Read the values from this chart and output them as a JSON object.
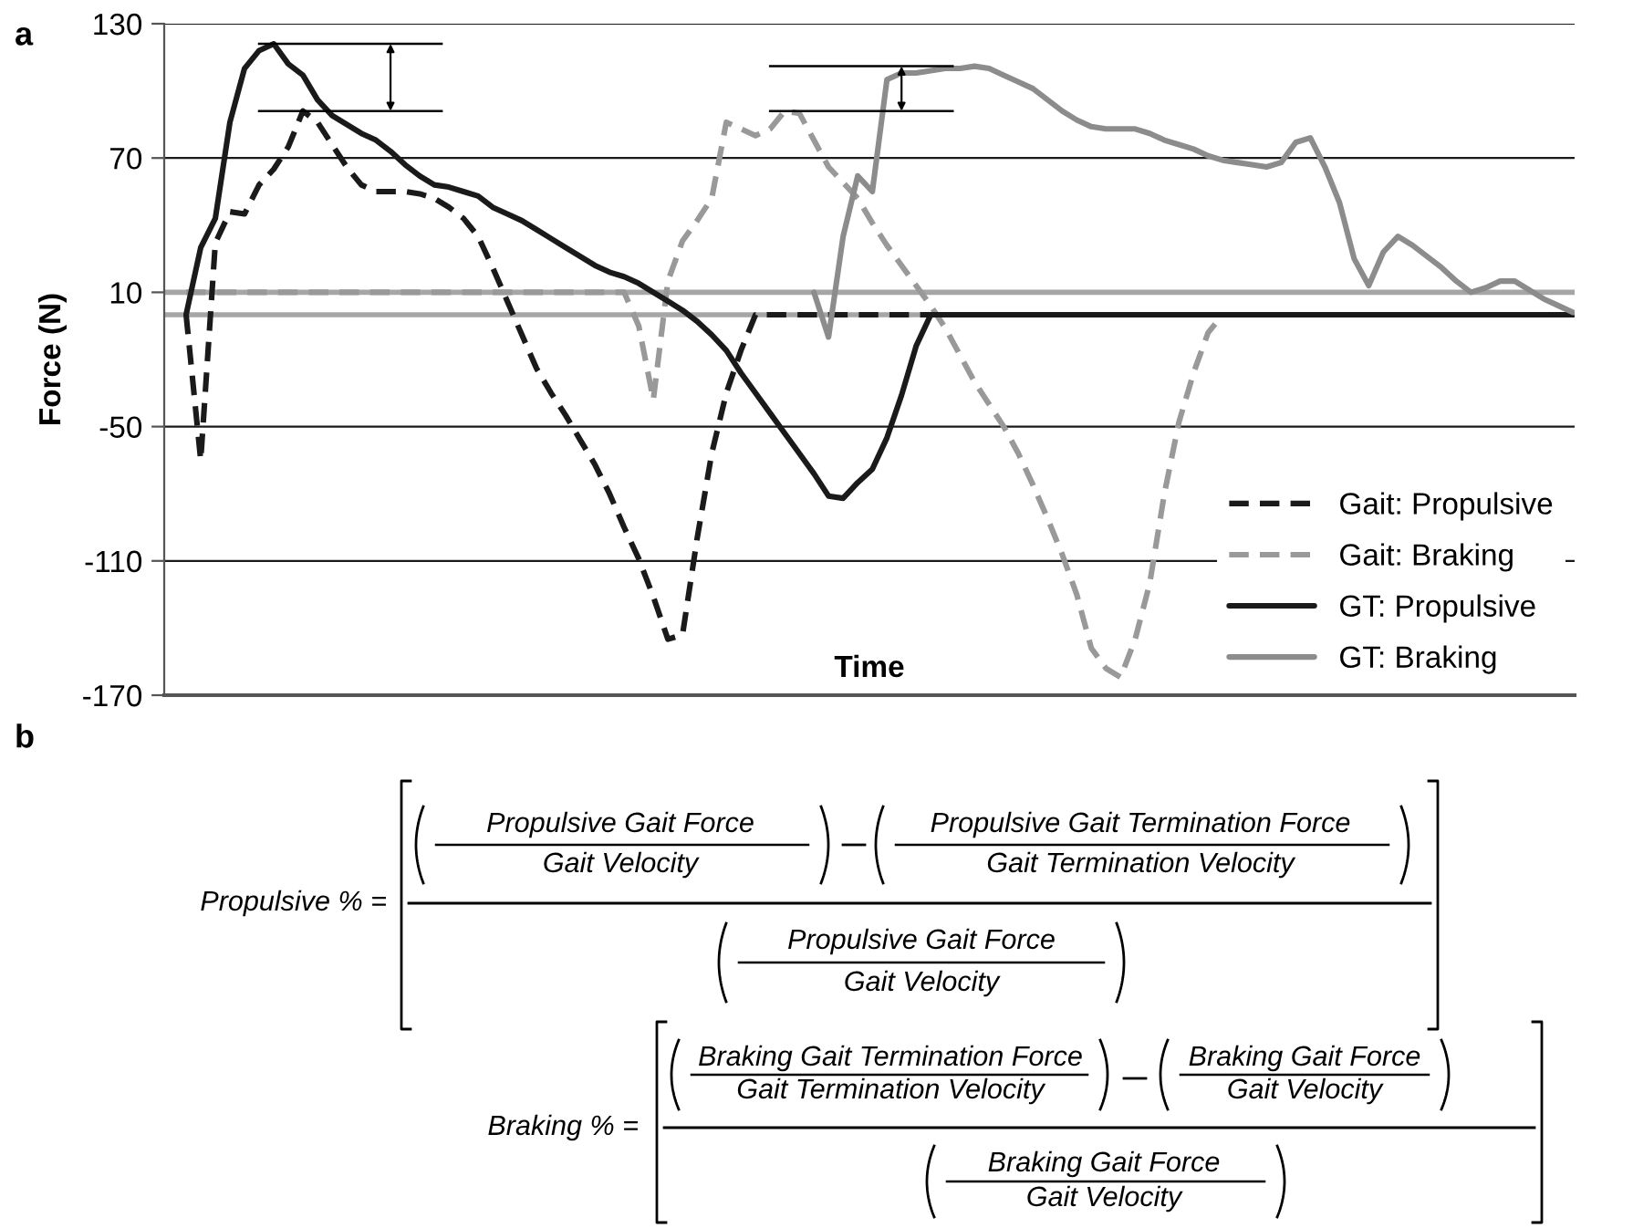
{
  "chart_data": [
    {
      "type": "line",
      "title": "a",
      "ylabel": "Force (N)",
      "xlabel": "Time",
      "categories": [
        null,
        null,
        null,
        null,
        null,
        null,
        null,
        null,
        null,
        null,
        null,
        null,
        null,
        null,
        null,
        null,
        null,
        null,
        null,
        null,
        null,
        null,
        null,
        null,
        null,
        null,
        null,
        null,
        null,
        null,
        null,
        null,
        null,
        null,
        null,
        null,
        null,
        null,
        null,
        null,
        null,
        null,
        null,
        null,
        null,
        null,
        null,
        null,
        null,
        null,
        null,
        null,
        null,
        null,
        null,
        null,
        null,
        null,
        null,
        null,
        null,
        null,
        null,
        null,
        null,
        null,
        null,
        null,
        null,
        null,
        null,
        null,
        null,
        null,
        null,
        null,
        null,
        null,
        null,
        null,
        null,
        null,
        null,
        null,
        null,
        null,
        null,
        null,
        null,
        null,
        null,
        null,
        null,
        null,
        null,
        null
      ],
      "ylim": [
        -170,
        130
      ],
      "yticks": [
        -170,
        -110,
        -50,
        10,
        70,
        130
      ],
      "grid": "y",
      "legend": "bottom right",
      "tick_labels": "y",
      "ref_lines": [
        {
          "axis": "y",
          "value": 10,
          "color": "#a6a6a6"
        },
        {
          "axis": "y",
          "value": 0,
          "color": "#a6a6a6"
        }
      ],
      "series": [
        {
          "name": "Gait: Propulsive",
          "color": "#1a1a1a",
          "line_style": "dashed",
          "values": [
            0,
            -65,
            32,
            46,
            45,
            58,
            65,
            75,
            91,
            86,
            76,
            66,
            58,
            55,
            55,
            55,
            54,
            52,
            48,
            43,
            35,
            21,
            6,
            -9,
            -24,
            -35,
            -45,
            -56,
            -67,
            -80,
            -95,
            -109,
            -126,
            -145,
            -143,
            -100,
            -62,
            -35,
            -16,
            0,
            0,
            0,
            0,
            0,
            0,
            0,
            0,
            0,
            0,
            0,
            0,
            0,
            0,
            0,
            0,
            0,
            0,
            0,
            0,
            0,
            0,
            0,
            0,
            0,
            0,
            0,
            0,
            0,
            0,
            0,
            0,
            0,
            0,
            0,
            0,
            0,
            0,
            0,
            0,
            0,
            0,
            0,
            0,
            0,
            0,
            0,
            0,
            0,
            0,
            0,
            0,
            0,
            0,
            0,
            0,
            0
          ]
        },
        {
          "name": "Gait: Braking",
          "color": "#999999",
          "line_style": "dashed",
          "values": [
            10,
            10,
            10,
            10,
            10,
            10,
            10,
            10,
            10,
            10,
            10,
            10,
            10,
            10,
            10,
            10,
            10,
            10,
            10,
            10,
            10,
            10,
            10,
            10,
            10,
            10,
            10,
            10,
            10,
            10,
            10,
            -5,
            -38,
            15,
            33,
            42,
            52,
            86,
            83,
            80,
            83,
            91,
            90,
            78,
            66,
            59,
            52,
            41,
            31,
            22,
            13,
            4,
            -6,
            -18,
            -30,
            -40,
            -50,
            -62,
            -76,
            -91,
            -107,
            -125,
            -149,
            -158,
            -162,
            -145,
            -120,
            -80,
            -48,
            -26,
            -8,
            0,
            0,
            0,
            0,
            0,
            0,
            0,
            0,
            0,
            0,
            0,
            0,
            0,
            0,
            0,
            0,
            0,
            0,
            0,
            0,
            0,
            0,
            0,
            0,
            0
          ]
        },
        {
          "name": "GT: Propulsive",
          "color": "#1a1a1a",
          "line_style": "solid",
          "values": [
            0,
            30,
            43,
            86,
            110,
            118,
            121,
            112,
            107,
            96,
            89,
            85,
            81,
            78,
            73,
            67,
            62,
            58,
            57,
            55,
            53,
            48,
            45,
            42,
            38,
            34,
            30,
            26,
            22,
            19,
            17,
            14,
            10,
            6,
            2,
            -3,
            -9,
            -16,
            -26,
            -35,
            -44,
            -53,
            -62,
            -71,
            -81,
            -82,
            -75,
            -69,
            -55,
            -36,
            -14,
            0,
            0,
            0,
            0,
            0,
            0,
            0,
            0,
            0,
            0,
            0,
            0,
            0,
            0,
            0,
            0,
            0,
            0,
            0,
            0,
            0,
            0,
            0,
            0,
            0,
            0,
            0,
            0,
            0,
            0,
            0,
            0,
            0,
            0,
            0,
            0,
            0,
            0,
            0,
            0,
            0,
            0,
            0,
            0,
            0
          ]
        },
        {
          "name": "GT: Braking",
          "color": "#8c8c8c",
          "line_style": "solid",
          "values": [
            null,
            null,
            null,
            null,
            null,
            null,
            null,
            null,
            null,
            null,
            null,
            null,
            null,
            null,
            null,
            null,
            null,
            null,
            null,
            null,
            null,
            null,
            null,
            null,
            null,
            null,
            null,
            null,
            null,
            null,
            null,
            null,
            null,
            null,
            null,
            null,
            null,
            null,
            null,
            null,
            null,
            null,
            null,
            10,
            -10,
            35,
            62,
            55,
            105,
            108,
            108,
            109,
            110,
            110,
            111,
            110,
            107,
            104,
            101,
            96,
            91,
            87,
            84,
            83,
            83,
            83,
            81,
            78,
            76,
            74,
            71,
            69,
            68,
            67,
            66,
            68,
            77,
            79,
            66,
            50,
            25,
            13,
            28,
            35,
            31,
            26,
            21,
            15,
            10,
            12,
            15,
            15,
            11,
            7,
            4,
            1
          ]
        }
      ]
    },
    {
      "type": "other",
      "title": "b",
      "annotations": [
        "Propulsive % =",
        "Propulsive Gait Force",
        "Gait Velocity",
        "Propulsive Gait Termination Force",
        "Gait Termination Velocity",
        "Propulsive Gait Force",
        "Gait Velocity",
        "Braking % =",
        "Braking Gait Termination Force",
        "Gait Termination Velocity",
        "Braking Gait Force",
        "Gait Velocity",
        "Braking Gait Force",
        "Gait Velocity"
      ]
    }
  ]
}
